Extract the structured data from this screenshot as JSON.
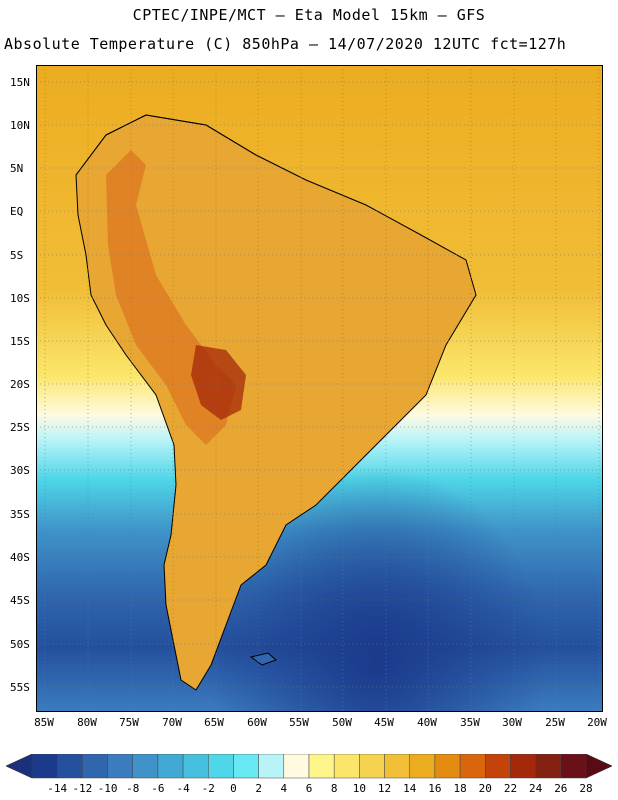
{
  "header": {
    "line1": "CPTEC/INPE/MCT –  Eta Model 15km – GFS",
    "line2": "Absolute Temperature (C) 850hPa – 14/07/2020 12UTC fct=127h"
  },
  "axes": {
    "lat_labels": [
      "15N",
      "10N",
      "5N",
      "EQ",
      "5S",
      "10S",
      "15S",
      "20S",
      "25S",
      "30S",
      "35S",
      "40S",
      "45S",
      "50S",
      "55S"
    ],
    "lon_labels": [
      "85W",
      "80W",
      "75W",
      "70W",
      "65W",
      "60W",
      "55W",
      "50W",
      "45W",
      "40W",
      "35W",
      "30W",
      "25W",
      "20W"
    ]
  },
  "colorbar": {
    "labels": [
      "-14",
      "-12",
      "-10",
      "-8",
      "-6",
      "-4",
      "-2",
      "0",
      "2",
      "4",
      "6",
      "8",
      "10",
      "12",
      "14",
      "16",
      "18",
      "20",
      "22",
      "24",
      "26",
      "28"
    ],
    "colors": [
      "#1b3a8c",
      "#24509e",
      "#2f66ae",
      "#3b7cbf",
      "#3f93c9",
      "#41a9d4",
      "#46c0de",
      "#4fd6e8",
      "#67e8f2",
      "#b8f3f8",
      "#fffae0",
      "#fdf48a",
      "#fbe66b",
      "#f5d24f",
      "#f1be38",
      "#ecac20",
      "#e48c12",
      "#d9660c",
      "#c4430a",
      "#a4280a",
      "#822012",
      "#6a1018"
    ],
    "low_end": "#1b2f7a",
    "high_end": "#5a0a14"
  },
  "map": {
    "land_color": "#e8a632",
    "hot_color": "#c8651a",
    "ocean_warm": "#ecac20",
    "ocean_mid": "#fbe66b",
    "ocean_cold": "#2f66ae"
  }
}
